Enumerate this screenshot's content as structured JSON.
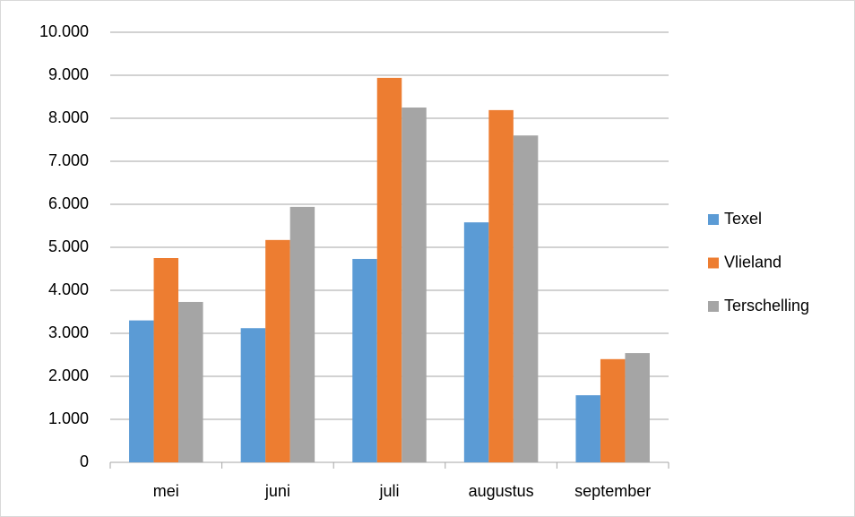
{
  "chart_data": {
    "type": "bar",
    "categories": [
      "mei",
      "juni",
      "juli",
      "augustus",
      "september"
    ],
    "series": [
      {
        "name": "Texel",
        "color": "#5b9bd5",
        "values": [
          3300,
          3120,
          4730,
          5580,
          1560
        ]
      },
      {
        "name": "Vlieland",
        "color": "#ed7d31",
        "values": [
          4750,
          5170,
          8940,
          8190,
          2400
        ]
      },
      {
        "name": "Terschelling",
        "color": "#a5a5a5",
        "values": [
          3730,
          5940,
          8250,
          7600,
          2540
        ]
      }
    ],
    "ylim": [
      0,
      10000
    ],
    "yticks": [
      0,
      {
        "value": 1000,
        "label": "1.000"
      },
      {
        "value": 2000,
        "label": "2.000"
      },
      {
        "value": 3000,
        "label": "3.000"
      },
      {
        "value": 4000,
        "label": "4.000"
      },
      {
        "value": 5000,
        "label": "5.000"
      },
      {
        "value": 6000,
        "label": "6.000"
      },
      {
        "value": 7000,
        "label": "7.000"
      },
      {
        "value": 8000,
        "label": "8.000"
      },
      {
        "value": 9000,
        "label": "9.000"
      },
      {
        "value": 10000,
        "label": "10.000"
      }
    ],
    "grid": true,
    "legend": "right"
  }
}
